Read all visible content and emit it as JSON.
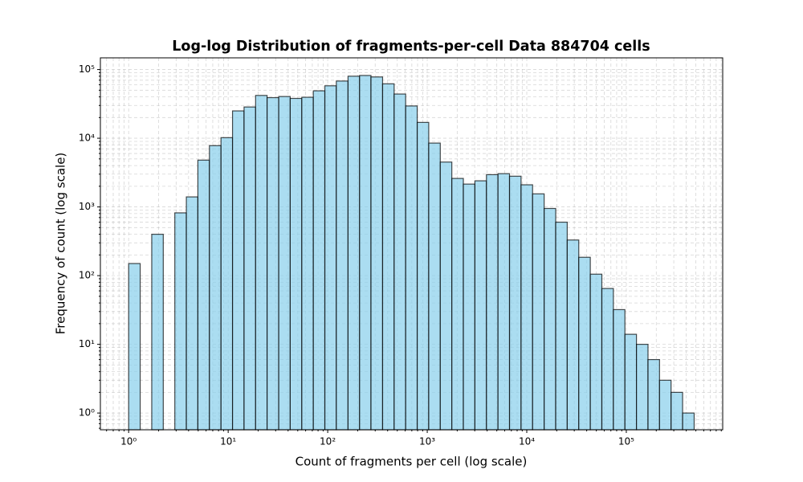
{
  "chart_data": {
    "type": "histogram",
    "title": "Log-log Distribution of fragments-per-cell Data 884704 cells",
    "xlabel": "Count of fragments per cell (log scale)",
    "ylabel": "Frequency of count (log scale)",
    "bins": [
      1,
      1.306,
      1.706,
      2.228,
      2.91,
      3.8,
      4.96,
      6.48,
      8.47,
      11.06,
      14.44,
      18.86,
      24.6,
      32.2,
      42.0,
      54.9,
      71.7,
      93.6,
      122,
      160,
      209,
      272,
      356,
      465,
      607,
      793,
      1035,
      1352,
      1766,
      2306,
      3012,
      3934,
      5137,
      6710,
      8762,
      11440,
      14950,
      19520,
      25490,
      33290,
      43480,
      56780,
      74160,
      96850,
      126500,
      165200,
      215700,
      281700,
      367900,
      480500
    ],
    "values": [
      150,
      0,
      400,
      0,
      820,
      1400,
      4800,
      7800,
      10200,
      25000,
      28500,
      42000,
      39000,
      40500,
      38000,
      39500,
      49000,
      58000,
      68000,
      80000,
      82000,
      78000,
      62000,
      44000,
      29500,
      17000,
      8500,
      4500,
      2600,
      2150,
      2400,
      2950,
      3050,
      2800,
      2100,
      1550,
      950,
      600,
      330,
      185,
      105,
      65,
      32,
      14,
      10,
      6,
      3,
      2,
      1
    ],
    "color": "skyblue",
    "edgecolor": "black",
    "alpha": 0.7,
    "xscale": "log",
    "yscale": "log",
    "xlim": [
      0.52,
      930000
    ],
    "ylim": [
      0.57,
      148000
    ],
    "xticks": [
      {
        "value": 1,
        "label": "10⁰"
      },
      {
        "value": 10,
        "label": "10¹"
      },
      {
        "value": 100,
        "label": "10²"
      },
      {
        "value": 1000,
        "label": "10³"
      },
      {
        "value": 10000,
        "label": "10⁴"
      },
      {
        "value": 100000,
        "label": "10⁵"
      }
    ],
    "yticks": [
      {
        "value": 1,
        "label": "10⁰"
      },
      {
        "value": 10,
        "label": "10¹"
      },
      {
        "value": 100,
        "label": "10²"
      },
      {
        "value": 1000,
        "label": "10³"
      },
      {
        "value": 10000,
        "label": "10⁴"
      },
      {
        "value": 100000,
        "label": "10⁵"
      }
    ],
    "xminor_ticks": [
      0.6,
      0.7,
      0.8,
      0.9,
      2,
      3,
      4,
      5,
      6,
      7,
      8,
      9,
      20,
      30,
      40,
      50,
      60,
      70,
      80,
      90,
      200,
      300,
      400,
      500,
      600,
      700,
      800,
      900,
      2000,
      3000,
      4000,
      5000,
      6000,
      7000,
      8000,
      9000,
      20000,
      30000,
      40000,
      50000,
      60000,
      70000,
      80000,
      90000,
      200000,
      300000,
      400000,
      500000,
      600000,
      700000,
      800000,
      900000
    ],
    "yminor_ticks": [
      0.6,
      0.7,
      0.8,
      0.9,
      2,
      3,
      4,
      5,
      6,
      7,
      8,
      9,
      20,
      30,
      40,
      50,
      60,
      70,
      80,
      90,
      200,
      300,
      400,
      500,
      600,
      700,
      800,
      900,
      2000,
      3000,
      4000,
      5000,
      6000,
      7000,
      8000,
      9000,
      20000,
      30000,
      40000,
      50000,
      60000,
      70000,
      80000,
      90000
    ],
    "grid": true
  }
}
